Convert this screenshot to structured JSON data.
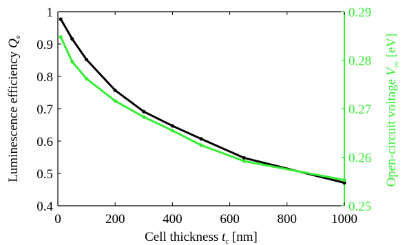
{
  "chart_data": {
    "type": "line",
    "xlabel": {
      "main": "Cell thickness ",
      "sym": "t",
      "sub": "c",
      "unit": " [nm]"
    },
    "ylabel_left": {
      "main": "Luminescence efficiency ",
      "sym": "Q",
      "sub": "e"
    },
    "ylabel_right": {
      "main": "Open-circuit voltage ",
      "sym": "V",
      "sub": "oc",
      "unit": " [eV]"
    },
    "xlim": [
      0,
      1000
    ],
    "ylim_left": [
      0.4,
      1.0
    ],
    "ylim_right": [
      0.25,
      0.29
    ],
    "x_ticks": [
      0,
      200,
      400,
      600,
      800,
      1000
    ],
    "y_ticks_left": [
      "0.4",
      "0.5",
      "0.6",
      "0.7",
      "0.8",
      "0.9",
      "1"
    ],
    "y_ticks_right": [
      "0.25",
      "0.26",
      "0.27",
      "0.28",
      "0.29"
    ],
    "grid": false,
    "series": [
      {
        "axis": "left",
        "color": "#000000",
        "x": [
          10,
          50,
          100,
          200,
          300,
          400,
          500,
          650,
          1000
        ],
        "y": [
          0.977,
          0.916,
          0.852,
          0.757,
          0.691,
          0.647,
          0.607,
          0.548,
          0.471
        ]
      },
      {
        "axis": "right",
        "color": "#33ee33",
        "x": [
          10,
          50,
          100,
          200,
          300,
          400,
          500,
          650,
          1000
        ],
        "y": [
          0.2848,
          0.2797,
          0.2762,
          0.2716,
          0.2683,
          0.2655,
          0.2625,
          0.2592,
          0.2553
        ]
      }
    ],
    "colors": {
      "left_axis": "#000000",
      "right_axis": "#33ee33"
    }
  }
}
